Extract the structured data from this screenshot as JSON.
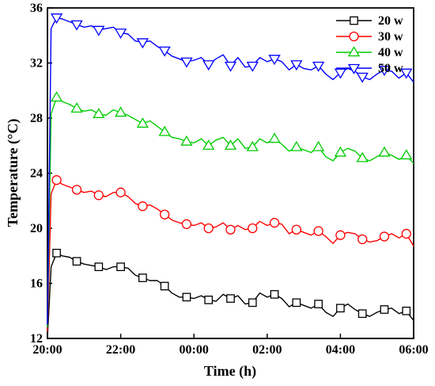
{
  "chart_data": {
    "type": "line",
    "title": "",
    "xlabel": "Time (h)",
    "ylabel": "Temperature (°C)",
    "x_ticks": [
      "20:00",
      "22:00",
      "00:00",
      "02:00",
      "04:00",
      "06:00"
    ],
    "xlim": [
      0,
      10
    ],
    "ylim": [
      12,
      36
    ],
    "y_ticks": [
      12,
      16,
      20,
      24,
      28,
      32,
      36
    ],
    "grid": false,
    "legend_position": "top-right",
    "series": [
      {
        "name": "20 w",
        "color": "#000000",
        "marker": "square",
        "x": [
          0,
          0.1,
          0.25,
          0.4,
          0.6,
          0.8,
          1.0,
          1.2,
          1.4,
          1.6,
          1.8,
          2.0,
          2.2,
          2.4,
          2.6,
          2.8,
          3.0,
          3.2,
          3.4,
          3.6,
          3.8,
          4.0,
          4.2,
          4.4,
          4.6,
          4.8,
          5.0,
          5.2,
          5.4,
          5.6,
          5.8,
          6.0,
          6.2,
          6.4,
          6.6,
          6.8,
          7.0,
          7.2,
          7.4,
          7.6,
          7.8,
          8.0,
          8.2,
          8.4,
          8.6,
          8.8,
          9.0,
          9.2,
          9.4,
          9.6,
          9.8,
          10.0
        ],
        "y": [
          12,
          17.2,
          18.2,
          18.0,
          17.9,
          17.6,
          17.4,
          17.3,
          17.2,
          17.0,
          17.2,
          17.2,
          17.1,
          16.6,
          16.4,
          16.2,
          16.2,
          15.8,
          15.3,
          15.0,
          15.0,
          14.9,
          15.1,
          14.8,
          14.7,
          15.2,
          14.9,
          15.1,
          14.5,
          14.6,
          15.3,
          15.0,
          15.2,
          14.9,
          14.3,
          14.6,
          14.4,
          14.2,
          14.5,
          13.9,
          13.6,
          14.2,
          14.5,
          14.1,
          13.8,
          13.6,
          13.9,
          14.1,
          14.2,
          13.8,
          14.0,
          13.3
        ]
      },
      {
        "name": "30 w",
        "color": "#ff0000",
        "marker": "circle",
        "x": [
          0,
          0.1,
          0.25,
          0.4,
          0.6,
          0.8,
          1.0,
          1.2,
          1.4,
          1.6,
          1.8,
          2.0,
          2.2,
          2.4,
          2.6,
          2.8,
          3.0,
          3.2,
          3.4,
          3.6,
          3.8,
          4.0,
          4.2,
          4.4,
          4.6,
          4.8,
          5.0,
          5.2,
          5.4,
          5.6,
          5.8,
          6.0,
          6.2,
          6.4,
          6.6,
          6.8,
          7.0,
          7.2,
          7.4,
          7.6,
          7.8,
          8.0,
          8.2,
          8.4,
          8.6,
          8.8,
          9.0,
          9.2,
          9.4,
          9.6,
          9.8,
          10.0
        ],
        "y": [
          12.5,
          22.5,
          23.5,
          23.2,
          23.0,
          22.8,
          22.6,
          22.7,
          22.4,
          22.3,
          22.6,
          22.6,
          22.3,
          21.8,
          21.6,
          21.7,
          21.4,
          21.0,
          20.6,
          20.4,
          20.3,
          20.2,
          20.4,
          20.0,
          20.1,
          20.4,
          19.9,
          20.2,
          19.9,
          20.0,
          20.5,
          20.2,
          20.4,
          20.3,
          19.6,
          19.9,
          19.7,
          19.5,
          19.8,
          19.4,
          18.9,
          19.5,
          19.7,
          19.6,
          19.2,
          19.0,
          19.1,
          19.4,
          19.6,
          19.3,
          19.6,
          18.7
        ]
      },
      {
        "name": "40 w",
        "color": "#00cc00",
        "marker": "triangle-up",
        "x": [
          0,
          0.1,
          0.25,
          0.4,
          0.6,
          0.8,
          1.0,
          1.2,
          1.4,
          1.6,
          1.8,
          2.0,
          2.2,
          2.4,
          2.6,
          2.8,
          3.0,
          3.2,
          3.4,
          3.6,
          3.8,
          4.0,
          4.2,
          4.4,
          4.6,
          4.8,
          5.0,
          5.2,
          5.4,
          5.6,
          5.8,
          6.0,
          6.2,
          6.4,
          6.6,
          6.8,
          7.0,
          7.2,
          7.4,
          7.6,
          7.8,
          8.0,
          8.2,
          8.4,
          8.6,
          8.8,
          9.0,
          9.2,
          9.4,
          9.6,
          9.8,
          10.0
        ],
        "y": [
          12.8,
          28.3,
          29.5,
          29.2,
          29.0,
          28.7,
          28.5,
          28.6,
          28.3,
          28.2,
          28.6,
          28.4,
          28.2,
          27.9,
          27.6,
          27.8,
          27.4,
          27.0,
          26.6,
          26.5,
          26.3,
          26.2,
          26.5,
          26.0,
          26.4,
          26.6,
          26.0,
          26.5,
          25.8,
          25.9,
          26.5,
          26.2,
          26.5,
          26.1,
          25.6,
          25.9,
          25.7,
          25.5,
          25.9,
          25.2,
          24.9,
          25.5,
          25.8,
          25.6,
          25.1,
          24.9,
          25.2,
          25.5,
          25.3,
          25.0,
          25.3,
          24.7
        ]
      },
      {
        "name": "50 w",
        "color": "#0000ff",
        "marker": "triangle-down",
        "x": [
          0,
          0.1,
          0.25,
          0.4,
          0.6,
          0.8,
          1.0,
          1.2,
          1.4,
          1.6,
          1.8,
          2.0,
          2.2,
          2.4,
          2.6,
          2.8,
          3.0,
          3.2,
          3.4,
          3.6,
          3.8,
          4.0,
          4.2,
          4.4,
          4.6,
          4.8,
          5.0,
          5.2,
          5.4,
          5.6,
          5.8,
          6.0,
          6.2,
          6.4,
          6.6,
          6.8,
          7.0,
          7.2,
          7.4,
          7.6,
          7.8,
          8.0,
          8.2,
          8.4,
          8.6,
          8.8,
          9.0,
          9.2,
          9.4,
          9.6,
          9.8,
          10.0
        ],
        "y": [
          13.0,
          34.5,
          35.3,
          35.2,
          35.0,
          34.8,
          34.6,
          34.7,
          34.4,
          34.5,
          34.6,
          34.2,
          34.1,
          33.6,
          33.5,
          33.6,
          33.2,
          32.9,
          32.5,
          32.3,
          32.1,
          32.2,
          32.4,
          31.9,
          32.3,
          32.6,
          31.8,
          32.4,
          31.7,
          31.8,
          32.4,
          32.1,
          32.3,
          32.1,
          31.5,
          31.9,
          31.6,
          31.5,
          31.8,
          31.2,
          30.8,
          31.3,
          31.6,
          31.4,
          31.0,
          30.8,
          31.2,
          31.5,
          31.4,
          30.9,
          31.3,
          30.6
        ]
      }
    ]
  }
}
